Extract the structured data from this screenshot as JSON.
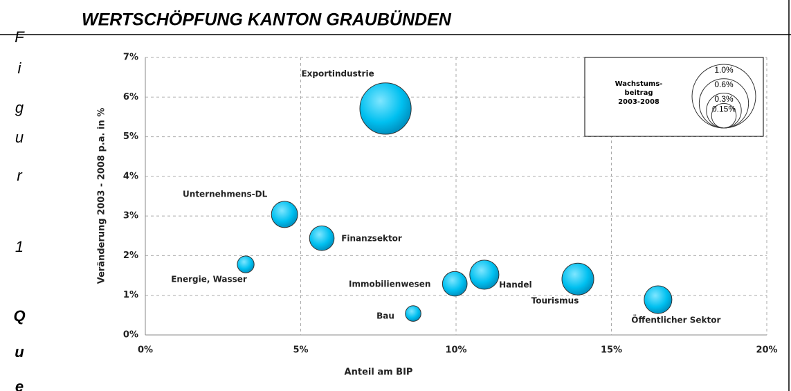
{
  "header": {
    "title": "WERTSCHÖPFUNG KANTON GRAUBÜNDEN"
  },
  "side_letters": [
    "F",
    "i",
    "g",
    "u",
    "r",
    "1",
    "Q",
    "u",
    "e"
  ],
  "chart_data": {
    "type": "bubble",
    "x_label": "Anteil am BIP",
    "y_label": "Veränderung 2003 - 2008 p.a. in %",
    "categories": [
      "Exportindustrie",
      "Unternehmens-DL",
      "Finanzsektor",
      "Energie, Wasser",
      "Bau",
      "Immobilienwesen",
      "Handel",
      "Tourismus",
      "Öffentlicher Sektor"
    ],
    "x": [
      7.73,
      4.48,
      5.68,
      3.23,
      8.62,
      9.96,
      10.91,
      13.92,
      16.5
    ],
    "values": [
      5.71,
      3.04,
      2.44,
      1.78,
      0.54,
      1.29,
      1.52,
      1.41,
      0.89
    ],
    "sizes": [
      0.65,
      0.17,
      0.15,
      0.07,
      0.06,
      0.15,
      0.21,
      0.25,
      0.19
    ],
    "color": "#00c0f0",
    "xlim": [
      0,
      20
    ],
    "xticks": [
      {
        "value": 0,
        "label": "0%"
      },
      {
        "value": 5,
        "label": "5%"
      },
      {
        "value": 10,
        "label": "10%"
      },
      {
        "value": 15,
        "label": "15%"
      },
      {
        "value": 20,
        "label": "20%"
      }
    ],
    "ylim": [
      0,
      7
    ],
    "yticks": [
      {
        "value": 0,
        "label": "0%"
      },
      {
        "value": 1,
        "label": "1%"
      },
      {
        "value": 2,
        "label": "2%"
      },
      {
        "value": 3,
        "label": "3%"
      },
      {
        "value": 4,
        "label": "4%"
      },
      {
        "value": 5,
        "label": "5%"
      },
      {
        "value": 6,
        "label": "6%"
      },
      {
        "value": 7,
        "label": "7%"
      }
    ],
    "grid": true,
    "size_legend": {
      "title": [
        "Wachstums-",
        "beitrag",
        "2003-2008"
      ],
      "sizes": [
        {
          "value": 1.0,
          "label": "1.0%"
        },
        {
          "value": 0.6,
          "label": "0.6%"
        },
        {
          "value": 0.3,
          "label": "0.3%"
        },
        {
          "value": 0.15,
          "label": "0.15%"
        }
      ]
    }
  }
}
